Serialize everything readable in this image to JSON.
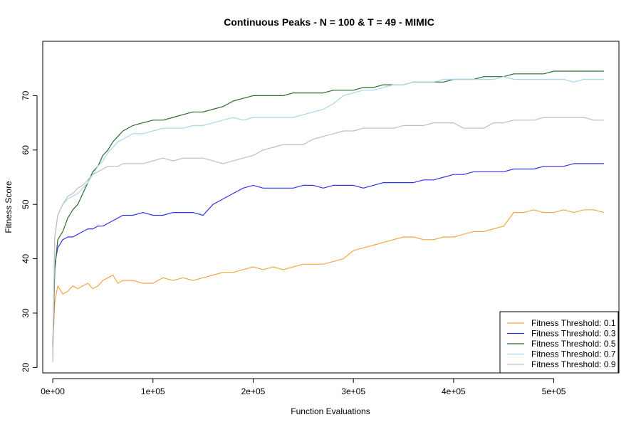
{
  "chart_data": {
    "type": "line",
    "title": "Continuous Peaks - N = 100 & T = 49 - MIMIC",
    "xlabel": "Function Evaluations",
    "ylabel": "Fitness Score",
    "xlim": [
      -10000,
      565000
    ],
    "ylim": [
      19,
      80
    ],
    "x_ticks": [
      0,
      100000,
      200000,
      300000,
      400000,
      500000
    ],
    "x_tick_labels": [
      "0e+00",
      "1e+05",
      "2e+05",
      "3e+05",
      "4e+05",
      "5e+05"
    ],
    "y_ticks": [
      20,
      30,
      40,
      50,
      60,
      70
    ],
    "y_tick_labels": [
      "20",
      "30",
      "40",
      "50",
      "60",
      "70"
    ],
    "grid": false,
    "legend_position": "bottom-right",
    "series": [
      {
        "name": "Fitness Threshold: 0.1",
        "color": "#f5a742",
        "x": [
          0,
          2000,
          5000,
          10000,
          15000,
          20000,
          25000,
          30000,
          35000,
          40000,
          45000,
          50000,
          55000,
          60000,
          65000,
          70000,
          80000,
          90000,
          100000,
          110000,
          120000,
          130000,
          140000,
          150000,
          160000,
          170000,
          180000,
          190000,
          200000,
          210000,
          220000,
          230000,
          240000,
          250000,
          260000,
          270000,
          280000,
          290000,
          300000,
          310000,
          320000,
          330000,
          340000,
          350000,
          360000,
          370000,
          380000,
          390000,
          400000,
          410000,
          420000,
          430000,
          440000,
          450000,
          460000,
          470000,
          480000,
          490000,
          500000,
          510000,
          520000,
          530000,
          540000,
          550000
        ],
        "values": [
          24,
          32,
          35,
          33.5,
          34,
          35,
          34.5,
          35,
          35.5,
          34.5,
          35,
          36,
          36.5,
          37,
          35.5,
          36,
          36,
          35.5,
          35.5,
          36.5,
          36,
          36.5,
          36,
          36.5,
          37,
          37.5,
          37.5,
          38,
          38.5,
          38,
          38.5,
          38,
          38.5,
          39,
          39,
          39,
          39.5,
          40,
          41.5,
          42,
          42.5,
          43,
          43.5,
          44,
          44,
          43.5,
          43.5,
          44,
          44,
          44.5,
          45,
          45,
          45.5,
          46,
          48.5,
          48.5,
          49,
          48.5,
          48.5,
          49,
          48.5,
          49,
          49,
          48.5
        ]
      },
      {
        "name": "Fitness Threshold: 0.3",
        "color": "#3333ee",
        "x": [
          0,
          2000,
          5000,
          10000,
          15000,
          20000,
          25000,
          30000,
          35000,
          40000,
          45000,
          50000,
          55000,
          60000,
          65000,
          70000,
          80000,
          90000,
          100000,
          110000,
          120000,
          130000,
          140000,
          150000,
          155000,
          160000,
          170000,
          180000,
          190000,
          200000,
          210000,
          220000,
          230000,
          240000,
          250000,
          260000,
          270000,
          280000,
          290000,
          300000,
          310000,
          320000,
          330000,
          340000,
          350000,
          360000,
          370000,
          380000,
          390000,
          400000,
          410000,
          420000,
          430000,
          440000,
          450000,
          460000,
          470000,
          480000,
          490000,
          500000,
          510000,
          520000,
          530000,
          540000,
          550000
        ],
        "values": [
          24,
          39,
          42,
          43.5,
          44,
          44,
          44.5,
          45,
          45.5,
          45.5,
          46,
          46,
          46.5,
          47,
          47.5,
          48,
          48,
          48.5,
          48,
          48,
          48.5,
          48.5,
          48.5,
          48,
          49,
          50,
          51,
          52,
          53,
          53.5,
          53,
          53,
          53,
          53,
          53.5,
          53.5,
          53,
          53.5,
          53.5,
          53.5,
          53,
          53.5,
          54,
          54,
          54,
          54,
          54.5,
          54.5,
          55,
          55.5,
          55.5,
          56,
          56,
          56,
          56,
          56.5,
          56.5,
          56.5,
          57,
          57,
          57,
          57.5,
          57.5,
          57.5,
          57.5
        ]
      },
      {
        "name": "Fitness Threshold: 0.5",
        "color": "#2d6a2d",
        "x": [
          0,
          2000,
          5000,
          10000,
          15000,
          20000,
          25000,
          30000,
          35000,
          40000,
          45000,
          50000,
          55000,
          60000,
          65000,
          70000,
          80000,
          90000,
          100000,
          110000,
          120000,
          130000,
          140000,
          150000,
          160000,
          170000,
          180000,
          190000,
          200000,
          210000,
          220000,
          230000,
          240000,
          250000,
          260000,
          270000,
          280000,
          290000,
          300000,
          310000,
          320000,
          330000,
          340000,
          350000,
          360000,
          370000,
          380000,
          390000,
          400000,
          410000,
          420000,
          430000,
          440000,
          450000,
          460000,
          470000,
          480000,
          490000,
          500000,
          510000,
          520000,
          530000,
          540000,
          550000
        ],
        "values": [
          22,
          38,
          43.5,
          45,
          47.5,
          49,
          50,
          52,
          54,
          56,
          57,
          59,
          60,
          61.5,
          62.5,
          63.5,
          64.5,
          65,
          65.5,
          65.5,
          66,
          66.5,
          67,
          67,
          67.5,
          68,
          69,
          69.5,
          70,
          70,
          70,
          70,
          70.5,
          70.5,
          70.5,
          70.5,
          71,
          71,
          71,
          71.5,
          71.5,
          72,
          72,
          72,
          72.5,
          72.5,
          72.5,
          72.5,
          73,
          73,
          73,
          73.5,
          73.5,
          73.5,
          74,
          74,
          74,
          74,
          74.5,
          74.5,
          74.5,
          74.5,
          74.5,
          74.5
        ]
      },
      {
        "name": "Fitness Threshold: 0.7",
        "color": "#a8d8e8",
        "x": [
          0,
          2000,
          5000,
          10000,
          15000,
          20000,
          25000,
          30000,
          35000,
          40000,
          45000,
          50000,
          55000,
          60000,
          65000,
          70000,
          80000,
          90000,
          100000,
          110000,
          120000,
          130000,
          140000,
          150000,
          160000,
          170000,
          180000,
          190000,
          200000,
          210000,
          220000,
          230000,
          240000,
          250000,
          260000,
          270000,
          280000,
          290000,
          300000,
          310000,
          320000,
          330000,
          340000,
          350000,
          360000,
          370000,
          380000,
          390000,
          400000,
          410000,
          420000,
          430000,
          440000,
          450000,
          460000,
          470000,
          480000,
          490000,
          500000,
          510000,
          520000,
          530000,
          540000,
          550000
        ],
        "values": [
          22,
          44,
          48,
          50,
          51,
          51.5,
          52,
          53,
          54,
          55.5,
          57,
          58,
          59.5,
          60.5,
          61.5,
          62,
          63,
          63,
          63.5,
          64,
          64,
          64,
          64.5,
          64.5,
          65,
          65.5,
          66,
          65.5,
          66,
          66,
          66,
          66,
          66,
          66.5,
          67,
          67.5,
          68.5,
          70,
          70.5,
          71,
          71,
          71.5,
          72,
          72,
          72.5,
          72.5,
          72.5,
          73,
          73,
          73,
          73,
          73,
          73,
          73.5,
          73,
          73,
          73,
          73,
          73,
          73,
          72.5,
          73,
          73,
          73
        ]
      },
      {
        "name": "Fitness Threshold: 0.9",
        "color": "#bebebe",
        "x": [
          0,
          2000,
          5000,
          10000,
          15000,
          20000,
          25000,
          30000,
          35000,
          40000,
          45000,
          50000,
          55000,
          60000,
          65000,
          70000,
          80000,
          90000,
          100000,
          110000,
          120000,
          130000,
          140000,
          150000,
          160000,
          170000,
          180000,
          190000,
          200000,
          210000,
          220000,
          230000,
          240000,
          250000,
          260000,
          270000,
          280000,
          290000,
          300000,
          310000,
          320000,
          330000,
          340000,
          350000,
          360000,
          370000,
          380000,
          390000,
          400000,
          410000,
          420000,
          430000,
          440000,
          450000,
          460000,
          470000,
          480000,
          490000,
          500000,
          510000,
          520000,
          530000,
          540000,
          550000
        ],
        "values": [
          21,
          44,
          48,
          50,
          51.5,
          52,
          53,
          53.5,
          54.5,
          55.5,
          56,
          56.5,
          57,
          57,
          57,
          57.5,
          57.5,
          57.5,
          58,
          58.5,
          58,
          58.5,
          58.5,
          58.5,
          58,
          57.5,
          58,
          58.5,
          59,
          60,
          60.5,
          61,
          61,
          61,
          62,
          62.5,
          63,
          63.5,
          63.5,
          64,
          64,
          64,
          64,
          64.5,
          64.5,
          64.5,
          65,
          65,
          65,
          64,
          64,
          64,
          65,
          65,
          65.5,
          65.5,
          65.5,
          66,
          66,
          66,
          66,
          66,
          65.5,
          65.5
        ]
      }
    ]
  }
}
